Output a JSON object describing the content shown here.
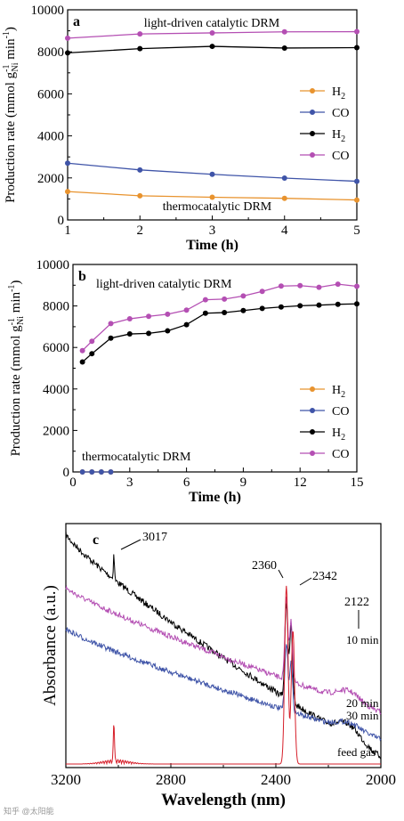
{
  "watermark": "知乎 @太阳能",
  "chart_data": [
    {
      "panel": "a",
      "type": "line",
      "xlabel": "Time (h)",
      "ylabel_main": "Production rate (mmol g",
      "ylabel_sub": "Ni",
      "ylabel_sup": "-1",
      "ylabel_tail": " min",
      "xlim": [
        1,
        5
      ],
      "ylim": [
        0,
        10000
      ],
      "xticks": [
        "1",
        "2",
        "3",
        "4",
        "5"
      ],
      "yticks": [
        "0",
        "2000",
        "4000",
        "6000",
        "8000",
        "10000"
      ],
      "annotations": [
        "light-driven catalytic DRM",
        "thermocatalytic DRM"
      ],
      "legend": [
        "H2",
        "CO",
        "H2",
        "CO"
      ],
      "legend_position": "right-middle",
      "x": [
        1,
        2,
        3,
        4,
        5
      ],
      "series": [
        {
          "name": "H2",
          "color": "#e8932e",
          "values": [
            1350,
            1150,
            1080,
            1030,
            950
          ]
        },
        {
          "name": "CO",
          "color": "#3f54a8",
          "values": [
            2700,
            2380,
            2170,
            1990,
            1840
          ]
        },
        {
          "name": "H2",
          "color": "#000000",
          "values": [
            7950,
            8150,
            8260,
            8180,
            8200
          ]
        },
        {
          "name": "CO",
          "color": "#b44fb3",
          "values": [
            8650,
            8850,
            8900,
            8950,
            8960
          ]
        }
      ]
    },
    {
      "panel": "b",
      "type": "line",
      "xlabel": "Time (h)",
      "ylabel_main": "Production rate (mmol g",
      "ylabel_sub": "Ni",
      "ylabel_sup": "-1",
      "ylabel_tail": " min",
      "xlim": [
        0,
        15
      ],
      "ylim": [
        0,
        10000
      ],
      "xticks": [
        "0",
        "3",
        "6",
        "9",
        "12",
        "15"
      ],
      "yticks": [
        "0",
        "2000",
        "4000",
        "6000",
        "8000",
        "10000"
      ],
      "annotations": [
        "light-driven catalytic DRM",
        "thermocatalytic DRM"
      ],
      "legend": [
        "H2",
        "CO",
        "H2",
        "CO"
      ],
      "legend_position": "right-middle",
      "series": [
        {
          "name": "H2",
          "color": "#e8932e",
          "x": [
            0.5,
            1,
            1.5,
            2
          ],
          "values": [
            0,
            0,
            0,
            0
          ]
        },
        {
          "name": "CO",
          "color": "#3f54a8",
          "x": [
            0.5,
            1,
            1.5,
            2
          ],
          "values": [
            0,
            0,
            0,
            0
          ]
        },
        {
          "name": "H2",
          "color": "#000000",
          "x": [
            0.5,
            1,
            2,
            3,
            4,
            5,
            6,
            7,
            8,
            9,
            10,
            11,
            12,
            13,
            14,
            15
          ],
          "values": [
            5300,
            5700,
            6450,
            6650,
            6680,
            6800,
            7100,
            7650,
            7680,
            7780,
            7880,
            7950,
            8010,
            8040,
            8080,
            8100
          ]
        },
        {
          "name": "CO",
          "color": "#b44fb3",
          "x": [
            0.5,
            1,
            2,
            3,
            4,
            5,
            6,
            7,
            8,
            9,
            10,
            11,
            12,
            13,
            14,
            15
          ],
          "values": [
            5850,
            6300,
            7150,
            7380,
            7500,
            7600,
            7800,
            8300,
            8330,
            8480,
            8700,
            8960,
            8980,
            8900,
            9050,
            8950
          ]
        }
      ]
    },
    {
      "panel": "c",
      "type": "line",
      "xlabel": "Wavelength (nm)",
      "ylabel": "Absorbance (a.u.)",
      "xlim": [
        3200,
        2000
      ],
      "xticks": [
        "3200",
        "2800",
        "2400",
        "2000"
      ],
      "peak_labels": [
        "3017",
        "2360",
        "2342",
        "2122"
      ],
      "series": [
        {
          "name": "10 min",
          "color": "#000000"
        },
        {
          "name": "20 min",
          "color": "#b44fb3"
        },
        {
          "name": "30 min",
          "color": "#3f54a8"
        },
        {
          "name": "feed gas",
          "color": "#d61f2a"
        }
      ]
    }
  ]
}
